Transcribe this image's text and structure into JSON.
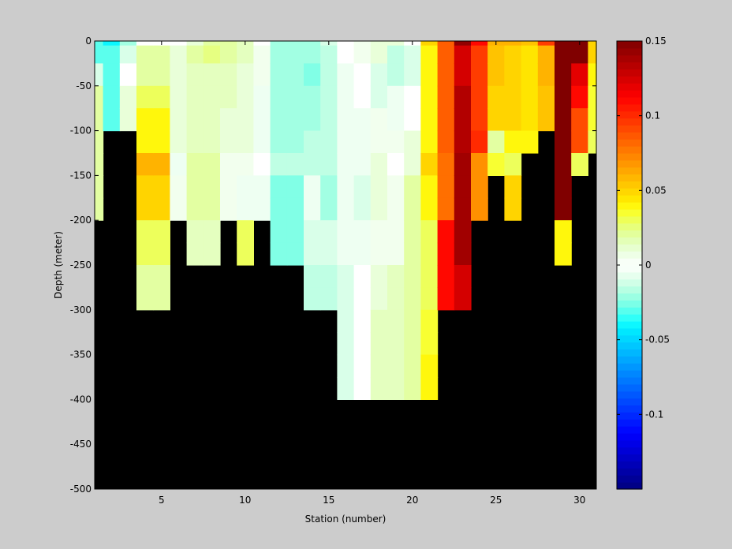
{
  "chart_data": {
    "type": "heatmap",
    "title": "",
    "xlabel": "Station (number)",
    "ylabel": "Depth (meter)",
    "xlim": [
      1,
      31
    ],
    "ylim": [
      -500,
      0
    ],
    "x_ticks": [
      5,
      10,
      15,
      20,
      25,
      30
    ],
    "y_ticks": [
      0,
      -50,
      -100,
      -150,
      -200,
      -250,
      -300,
      -350,
      -400,
      -450,
      -500
    ],
    "depth_rows": [
      [
        -5,
        0
      ],
      [
        -25,
        -5
      ],
      [
        -50,
        -25
      ],
      [
        -75,
        -50
      ],
      [
        -100,
        -75
      ],
      [
        -125,
        -100
      ],
      [
        -150,
        -125
      ],
      [
        -175,
        -150
      ],
      [
        -200,
        -175
      ],
      [
        -225,
        -200
      ],
      [
        -250,
        -225
      ],
      [
        -275,
        -250
      ],
      [
        -300,
        -275
      ],
      [
        -325,
        -300
      ],
      [
        -350,
        -325
      ],
      [
        -375,
        -350
      ],
      [
        -400,
        -375
      ]
    ],
    "no_data_color": "#000000",
    "colorbar": {
      "min": -0.15,
      "max": 0.15,
      "ticks": [
        0.15,
        0.1,
        0.05,
        0,
        -0.05,
        -0.1
      ],
      "tick_labels": [
        "0.15",
        "0.1",
        "0.05",
        "0",
        "-0.05",
        "-0.1"
      ],
      "levels": 64
    },
    "stations": [
      {
        "station": 1,
        "max_depth": -200,
        "values": [
          -0.03,
          -0.03,
          -0.01,
          0.02,
          0.02,
          0.02,
          0.02,
          0.02,
          0.02
        ]
      },
      {
        "station": 2,
        "max_depth": -100,
        "values": [
          -0.04,
          -0.03,
          -0.03,
          -0.03,
          -0.03
        ]
      },
      {
        "station": 3,
        "max_depth": -100,
        "values": [
          -0.02,
          -0.01,
          0.0,
          0.01,
          0.01
        ]
      },
      {
        "station": 4,
        "max_depth": -300,
        "values": [
          0.0,
          0.02,
          0.02,
          0.03,
          0.04,
          0.04,
          0.06,
          0.05,
          0.05,
          0.03,
          0.03,
          0.02,
          0.02
        ]
      },
      {
        "station": 5,
        "max_depth": -300,
        "values": [
          0.0,
          0.02,
          0.02,
          0.03,
          0.04,
          0.04,
          0.06,
          0.05,
          0.05,
          0.03,
          0.03,
          0.02,
          0.02
        ]
      },
      {
        "station": 6,
        "max_depth": -200,
        "values": [
          0.0,
          0.01,
          0.01,
          0.01,
          0.01,
          0.01,
          -0.005,
          0.005,
          0.005
        ]
      },
      {
        "station": 7,
        "max_depth": -250,
        "values": [
          0.01,
          0.02,
          0.015,
          0.015,
          0.015,
          0.015,
          0.02,
          0.02,
          0.02,
          0.015,
          0.015
        ]
      },
      {
        "station": 8,
        "max_depth": -250,
        "values": [
          0.02,
          0.025,
          0.015,
          0.015,
          0.015,
          0.015,
          0.02,
          0.02,
          0.02,
          0.015,
          0.015
        ]
      },
      {
        "station": 9,
        "max_depth": -200,
        "values": [
          0.02,
          0.02,
          0.015,
          0.015,
          0.01,
          0.01,
          0.005,
          0.005,
          0.005
        ]
      },
      {
        "station": 10,
        "max_depth": -250,
        "values": [
          0.015,
          0.015,
          0.01,
          0.01,
          0.01,
          0.01,
          0.005,
          -0.005,
          -0.005,
          0.03,
          0.03
        ]
      },
      {
        "station": 11,
        "max_depth": -200,
        "values": [
          0.0,
          0.005,
          0.005,
          -0.005,
          -0.005,
          -0.005,
          0.0,
          -0.005,
          -0.005
        ]
      },
      {
        "station": 12,
        "max_depth": -250,
        "values": [
          -0.02,
          -0.02,
          -0.02,
          -0.02,
          -0.02,
          -0.02,
          -0.015,
          -0.025,
          -0.025,
          -0.025,
          -0.025
        ]
      },
      {
        "station": 13,
        "max_depth": -250,
        "values": [
          -0.02,
          -0.02,
          -0.02,
          -0.02,
          -0.02,
          -0.02,
          -0.015,
          -0.025,
          -0.025,
          -0.025,
          -0.025
        ]
      },
      {
        "station": 14,
        "max_depth": -300,
        "values": [
          -0.02,
          -0.02,
          -0.025,
          -0.02,
          -0.02,
          -0.015,
          -0.015,
          -0.005,
          -0.005,
          -0.01,
          -0.01,
          -0.015,
          -0.015
        ]
      },
      {
        "station": 15,
        "max_depth": -300,
        "values": [
          -0.01,
          -0.015,
          -0.015,
          -0.015,
          -0.015,
          -0.015,
          -0.015,
          -0.02,
          -0.02,
          -0.01,
          -0.01,
          -0.015,
          -0.015
        ]
      },
      {
        "station": 16,
        "max_depth": -400,
        "values": [
          0.0,
          0.0,
          -0.005,
          -0.005,
          -0.005,
          -0.005,
          -0.005,
          -0.005,
          -0.005,
          -0.005,
          -0.005,
          -0.01,
          -0.01,
          -0.01,
          -0.01,
          -0.01,
          -0.01
        ]
      },
      {
        "station": 17,
        "max_depth": -400,
        "values": [
          0.005,
          0.005,
          0.0,
          0.0,
          -0.005,
          -0.005,
          -0.005,
          -0.01,
          -0.01,
          -0.005,
          -0.005,
          0.0,
          0.0,
          0.0,
          0.0,
          0.0,
          0.0
        ]
      },
      {
        "station": 18,
        "max_depth": -400,
        "values": [
          0.01,
          0.01,
          -0.01,
          -0.01,
          0.005,
          0.005,
          0.01,
          0.01,
          0.01,
          0.005,
          0.005,
          0.01,
          0.01,
          0.015,
          0.015,
          0.015,
          0.015
        ]
      },
      {
        "station": 19,
        "max_depth": -400,
        "values": [
          0.01,
          -0.015,
          -0.015,
          -0.005,
          -0.005,
          0.005,
          0.0,
          0.005,
          0.005,
          0.005,
          0.005,
          0.015,
          0.015,
          0.015,
          0.015,
          0.015,
          0.015
        ]
      },
      {
        "station": 20,
        "max_depth": -400,
        "values": [
          0.0,
          -0.01,
          -0.01,
          0.0,
          0.0,
          0.01,
          0.01,
          0.02,
          0.02,
          0.02,
          0.02,
          0.02,
          0.02,
          0.02,
          0.02,
          0.02,
          0.02
        ]
      },
      {
        "station": 21,
        "max_depth": -400,
        "values": [
          0.05,
          0.04,
          0.04,
          0.04,
          0.04,
          0.04,
          0.05,
          0.04,
          0.04,
          0.03,
          0.03,
          0.03,
          0.03,
          0.035,
          0.035,
          0.04,
          0.04
        ]
      },
      {
        "station": 22,
        "max_depth": -300,
        "values": [
          0.085,
          0.085,
          0.085,
          0.085,
          0.085,
          0.085,
          0.08,
          0.08,
          0.08,
          0.11,
          0.11,
          0.11,
          0.11
        ]
      },
      {
        "station": 23,
        "max_depth": -300,
        "values": [
          0.145,
          0.125,
          0.125,
          0.135,
          0.135,
          0.135,
          0.14,
          0.14,
          0.14,
          0.14,
          0.14,
          0.125,
          0.125
        ]
      },
      {
        "station": 24,
        "max_depth": -200,
        "values": [
          0.11,
          0.095,
          0.095,
          0.095,
          0.095,
          0.1,
          0.07,
          0.07,
          0.07
        ]
      },
      {
        "station": 25,
        "max_depth": -150,
        "values": [
          0.06,
          0.055,
          0.055,
          0.05,
          0.05,
          0.02,
          0.035
        ]
      },
      {
        "station": 26,
        "max_depth": -200,
        "values": [
          0.06,
          0.05,
          0.05,
          0.05,
          0.05,
          0.04,
          0.03,
          0.05,
          0.05
        ]
      },
      {
        "station": 27,
        "max_depth": -125,
        "values": [
          0.055,
          0.045,
          0.045,
          0.045,
          0.045,
          0.04
        ]
      },
      {
        "station": 28,
        "max_depth": -100,
        "values": [
          0.095,
          0.06,
          0.06,
          0.055,
          0.055
        ]
      },
      {
        "station": 29,
        "max_depth": -250,
        "values": [
          0.15,
          0.15,
          0.15,
          0.15,
          0.15,
          0.15,
          0.15,
          0.15,
          0.15,
          0.04,
          0.04
        ]
      },
      {
        "station": 30,
        "max_depth": -150,
        "values": [
          0.15,
          0.15,
          0.12,
          0.11,
          0.09,
          0.09,
          0.03
        ]
      },
      {
        "station": 31,
        "max_depth": -125,
        "values": [
          0.05,
          0.05,
          0.04,
          0.035,
          0.035,
          0.03
        ]
      }
    ]
  }
}
